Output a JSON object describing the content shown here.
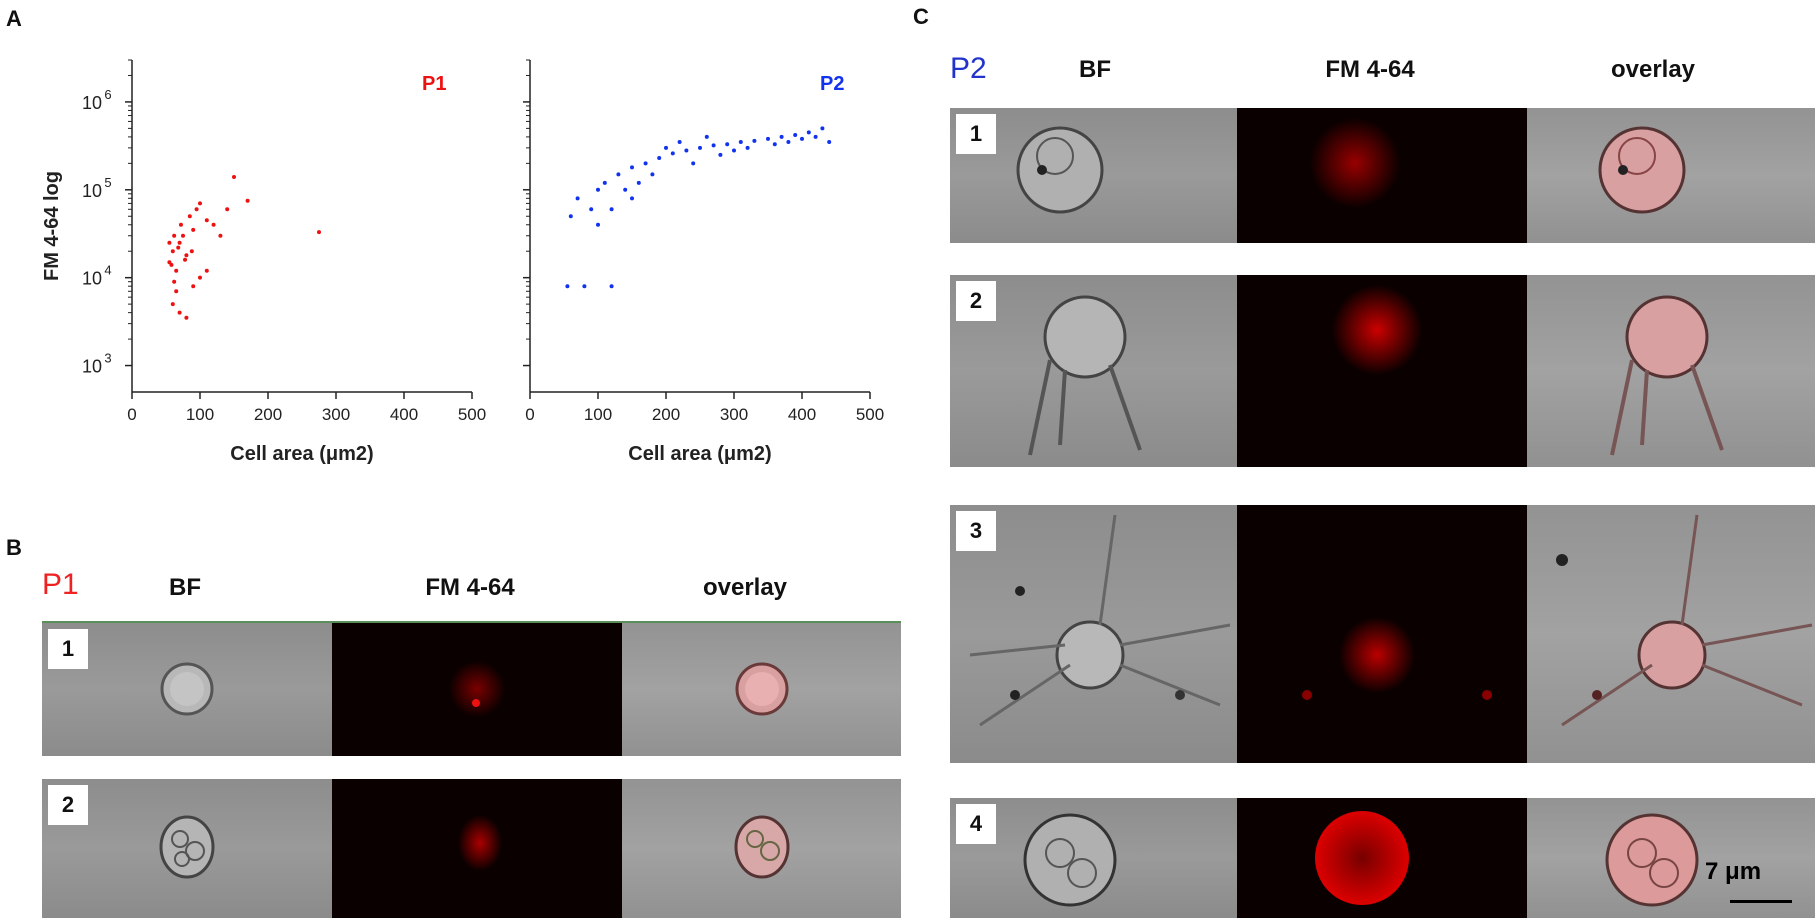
{
  "panels": {
    "a": "A",
    "b": "B",
    "c": "C"
  },
  "chart_data": [
    {
      "type": "scatter",
      "title": "P1",
      "xlabel": "Cell area (μm2)",
      "ylabel": "FM 4-64 log",
      "xlim": [
        0,
        500
      ],
      "ylim": [
        500,
        3000000
      ],
      "y_scale": "log",
      "x_ticks": [
        "0",
        "100",
        "200",
        "300",
        "400",
        "500"
      ],
      "y_ticks": [
        "10^3",
        "10^4",
        "10^5",
        "10^6"
      ],
      "color": "#ee1111",
      "points": [
        [
          55,
          15000
        ],
        [
          60,
          20000
        ],
        [
          65,
          12000
        ],
        [
          70,
          25000
        ],
        [
          62,
          9000
        ],
        [
          75,
          30000
        ],
        [
          80,
          18000
        ],
        [
          58,
          14000
        ],
        [
          68,
          22000
        ],
        [
          72,
          40000
        ],
        [
          85,
          50000
        ],
        [
          90,
          35000
        ],
        [
          95,
          60000
        ],
        [
          100,
          70000
        ],
        [
          110,
          45000
        ],
        [
          120,
          40000
        ],
        [
          130,
          30000
        ],
        [
          140,
          60000
        ],
        [
          150,
          140000
        ],
        [
          170,
          75000
        ],
        [
          275,
          33000
        ],
        [
          60,
          5000
        ],
        [
          70,
          4000
        ],
        [
          80,
          3500
        ],
        [
          65,
          7000
        ],
        [
          90,
          8000
        ],
        [
          100,
          10000
        ],
        [
          110,
          12000
        ],
        [
          55,
          25000
        ],
        [
          62,
          30000
        ],
        [
          78,
          16000
        ],
        [
          88,
          20000
        ]
      ],
      "series_label": "P1"
    },
    {
      "type": "scatter",
      "title": "P2",
      "xlabel": "Cell area (μm2)",
      "xlim": [
        0,
        500
      ],
      "ylim": [
        500,
        3000000
      ],
      "y_scale": "log",
      "x_ticks": [
        "0",
        "100",
        "200",
        "300",
        "400",
        "500"
      ],
      "color": "#1133ee",
      "points": [
        [
          55,
          8000
        ],
        [
          80,
          8000
        ],
        [
          120,
          8000
        ],
        [
          60,
          50000
        ],
        [
          70,
          80000
        ],
        [
          90,
          60000
        ],
        [
          100,
          100000
        ],
        [
          110,
          120000
        ],
        [
          130,
          150000
        ],
        [
          150,
          180000
        ],
        [
          170,
          200000
        ],
        [
          190,
          230000
        ],
        [
          210,
          260000
        ],
        [
          230,
          280000
        ],
        [
          250,
          300000
        ],
        [
          270,
          320000
        ],
        [
          290,
          330000
        ],
        [
          310,
          350000
        ],
        [
          330,
          360000
        ],
        [
          350,
          380000
        ],
        [
          370,
          400000
        ],
        [
          390,
          420000
        ],
        [
          410,
          450000
        ],
        [
          430,
          500000
        ],
        [
          440,
          350000
        ],
        [
          200,
          300000
        ],
        [
          220,
          350000
        ],
        [
          260,
          400000
        ],
        [
          280,
          250000
        ],
        [
          150,
          80000
        ],
        [
          120,
          60000
        ],
        [
          100,
          40000
        ],
        [
          180,
          150000
        ],
        [
          240,
          200000
        ],
        [
          300,
          280000
        ],
        [
          320,
          300000
        ],
        [
          360,
          330000
        ],
        [
          380,
          350000
        ],
        [
          400,
          380000
        ],
        [
          420,
          400000
        ],
        [
          160,
          120000
        ],
        [
          140,
          100000
        ]
      ],
      "series_label": "P2"
    }
  ],
  "panel_b": {
    "pop_label": "P1",
    "col_headers": [
      "BF",
      "FM 4-64",
      "overlay"
    ],
    "rows": [
      "1",
      "2"
    ]
  },
  "panel_c": {
    "pop_label": "P2",
    "col_headers": [
      "BF",
      "FM 4-64",
      "overlay"
    ],
    "rows": [
      "1",
      "2",
      "3",
      "4"
    ],
    "scale_bar": "7 μm"
  }
}
